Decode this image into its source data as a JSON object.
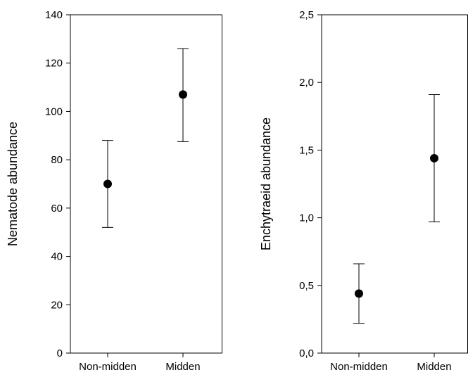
{
  "chart_data": [
    {
      "type": "scatter",
      "categories": [
        "Non-midden",
        "Midden"
      ],
      "series": [
        {
          "values": [
            70,
            107
          ],
          "error_low": [
            52,
            87.5
          ],
          "error_high": [
            88,
            126
          ]
        }
      ],
      "ylabel": "Nematode abundance",
      "xlabel": "",
      "ylim": [
        0,
        140
      ],
      "yticks": [
        "0",
        "20",
        "40",
        "60",
        "80",
        "100",
        "120",
        "140"
      ],
      "grid": false,
      "color": "#000000"
    },
    {
      "type": "scatter",
      "categories": [
        "Non-midden",
        "Midden"
      ],
      "series": [
        {
          "values": [
            0.44,
            1.44
          ],
          "error_low": [
            0.22,
            0.97
          ],
          "error_high": [
            0.66,
            1.91
          ]
        }
      ],
      "ylabel": "Enchytraeid abundance",
      "xlabel": "",
      "ylim": [
        0,
        2.5
      ],
      "yticks": [
        "0,0",
        "0,5",
        "1,0",
        "1,5",
        "2,0",
        "2,5"
      ],
      "grid": false,
      "color": "#000000"
    }
  ]
}
